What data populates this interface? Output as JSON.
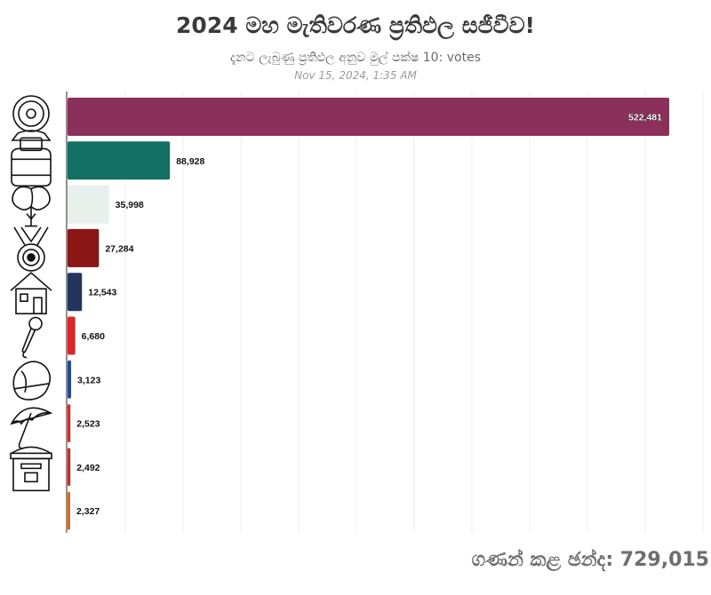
{
  "header": {
    "title": "2024 මහ මැතිවරණ ප්‍රතිඵල සජීවීව!",
    "subtitle": "දැනට ලැබුණු ප්‍රතිඵල අනුව මුල් පක්ෂ 10: votes",
    "timestamp": "Nov 15, 2024, 1:35 AM"
  },
  "footer": {
    "total_label": "ගණන් කළ ඡන්ද: 729,015"
  },
  "chart_data": {
    "type": "bar",
    "orientation": "horizontal",
    "xlim": [
      0,
      550000
    ],
    "grid": true,
    "categories": [
      "telephone-icon",
      "gas-cylinder-icon",
      "cotton-plant-icon",
      "medal-icon",
      "house-icon",
      "microphone-icon",
      "conch-shell-icon",
      "umbrella-icon",
      "letter-box-icon",
      "blank"
    ],
    "values": [
      522481,
      88928,
      35998,
      27284,
      12543,
      6680,
      3123,
      2523,
      2492,
      2327
    ],
    "value_labels": [
      "522,481",
      "88,928",
      "35,998",
      "27,284",
      "12,543",
      "6,680",
      "3,123",
      "2,523",
      "2,492",
      "2,327"
    ],
    "colors": [
      "#8b305b",
      "#137063",
      "#e7f0ea",
      "#8b1616",
      "#23345e",
      "#e02527",
      "#1d4c9a",
      "#d62a2a",
      "#c92a2a",
      "#d86a1e"
    ]
  }
}
